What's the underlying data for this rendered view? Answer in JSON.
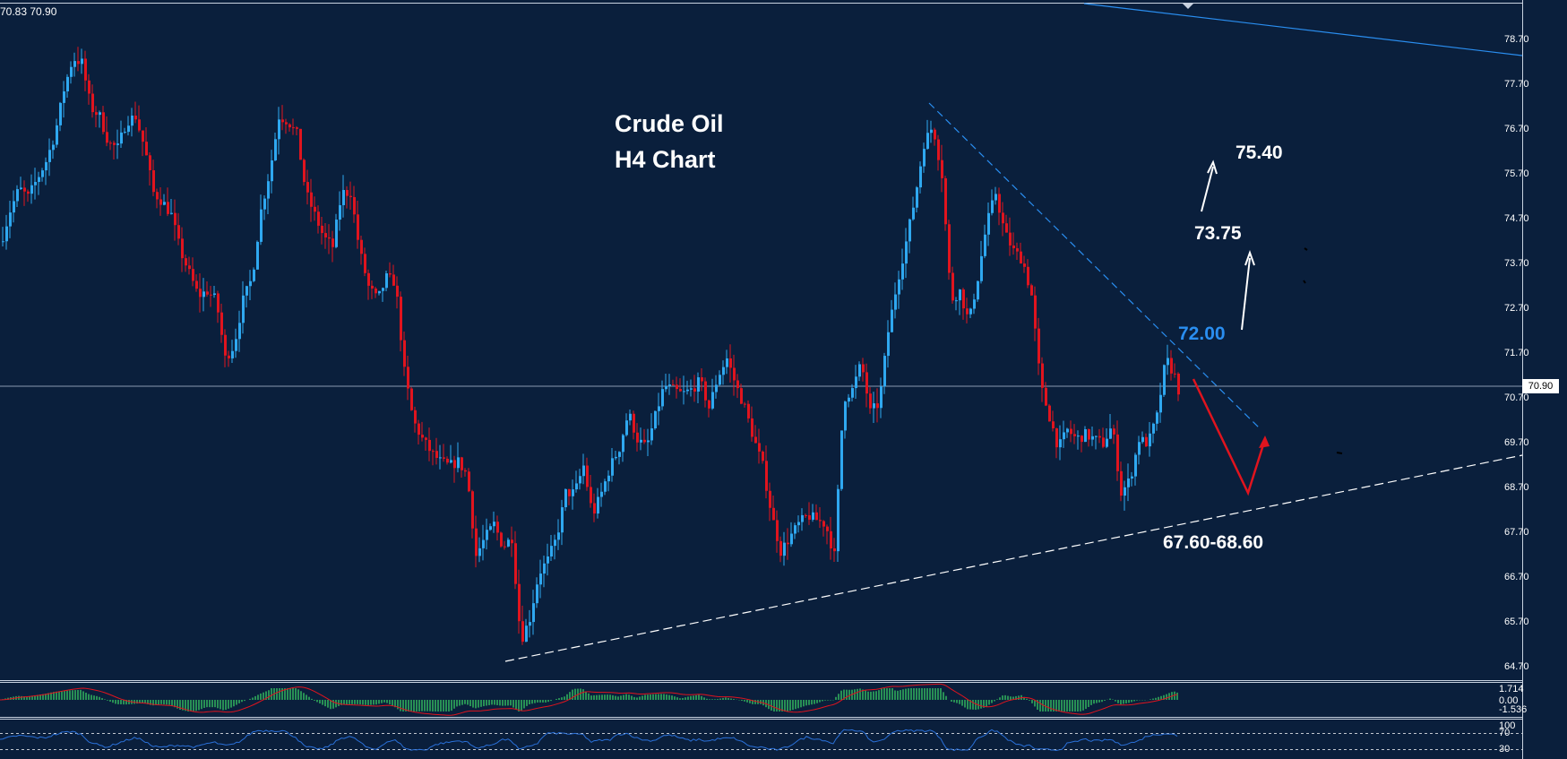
{
  "header": {
    "ohlc_text": "70.83 70.90"
  },
  "title": {
    "line1": "Crude Oil",
    "line2": "H4  Chart"
  },
  "annotations": {
    "target_high": "75.40",
    "target_mid": "73.75",
    "resistance": "72.00",
    "support_zone": "67.60-68.60"
  },
  "current_price": "70.90",
  "colors": {
    "background": "#0a1f3c",
    "bull": "#2fa8f0",
    "bear": "#e0141e",
    "resistance_label": "#2a8ef0",
    "arrow_bear": "#e0141e",
    "arrow_bull": "#ffffff",
    "macd_hist": "#35c060",
    "macd_signal": "#e0141e",
    "rsi_line": "#2a70d8"
  },
  "indicators": {
    "macd": {
      "labels": [
        "1.714",
        "0.00",
        "-1.536"
      ]
    },
    "rsi": {
      "labels": [
        "100",
        "70",
        "30"
      ]
    }
  },
  "chart_data": {
    "type": "candlestick",
    "title": "Crude Oil H4  Chart",
    "ylim": [
      64.2,
      79.3
    ],
    "y_ticks": [
      78.7,
      77.7,
      76.7,
      75.7,
      74.7,
      73.7,
      72.7,
      71.7,
      70.7,
      69.7,
      68.7,
      67.7,
      66.7,
      65.7,
      64.7
    ],
    "grid": false,
    "price_series": [
      {
        "x": 0,
        "y": 74.2
      },
      {
        "x": 10,
        "y": 74.9
      },
      {
        "x": 20,
        "y": 75.4
      },
      {
        "x": 30,
        "y": 75.2
      },
      {
        "x": 40,
        "y": 75.6
      },
      {
        "x": 50,
        "y": 76.0
      },
      {
        "x": 60,
        "y": 76.6
      },
      {
        "x": 70,
        "y": 77.6
      },
      {
        "x": 80,
        "y": 78.3
      },
      {
        "x": 90,
        "y": 78.2
      },
      {
        "x": 100,
        "y": 77.2
      },
      {
        "x": 110,
        "y": 77.0
      },
      {
        "x": 120,
        "y": 76.4
      },
      {
        "x": 130,
        "y": 76.3
      },
      {
        "x": 140,
        "y": 76.9
      },
      {
        "x": 150,
        "y": 77.0
      },
      {
        "x": 160,
        "y": 76.3
      },
      {
        "x": 170,
        "y": 75.3
      },
      {
        "x": 180,
        "y": 75.1
      },
      {
        "x": 190,
        "y": 74.8
      },
      {
        "x": 200,
        "y": 74.0
      },
      {
        "x": 210,
        "y": 73.5
      },
      {
        "x": 220,
        "y": 73.0
      },
      {
        "x": 230,
        "y": 73.1
      },
      {
        "x": 240,
        "y": 72.9
      },
      {
        "x": 250,
        "y": 71.6
      },
      {
        "x": 260,
        "y": 71.9
      },
      {
        "x": 270,
        "y": 72.9
      },
      {
        "x": 280,
        "y": 73.4
      },
      {
        "x": 290,
        "y": 74.9
      },
      {
        "x": 300,
        "y": 75.8
      },
      {
        "x": 310,
        "y": 77.0
      },
      {
        "x": 320,
        "y": 76.9
      },
      {
        "x": 330,
        "y": 76.6
      },
      {
        "x": 340,
        "y": 75.3
      },
      {
        "x": 350,
        "y": 74.8
      },
      {
        "x": 360,
        "y": 74.3
      },
      {
        "x": 370,
        "y": 74.1
      },
      {
        "x": 380,
        "y": 75.3
      },
      {
        "x": 390,
        "y": 75.3
      },
      {
        "x": 400,
        "y": 74.0
      },
      {
        "x": 410,
        "y": 73.2
      },
      {
        "x": 420,
        "y": 72.9
      },
      {
        "x": 430,
        "y": 73.4
      },
      {
        "x": 440,
        "y": 73.3
      },
      {
        "x": 450,
        "y": 71.3
      },
      {
        "x": 460,
        "y": 70.2
      },
      {
        "x": 470,
        "y": 69.8
      },
      {
        "x": 480,
        "y": 69.5
      },
      {
        "x": 490,
        "y": 69.3
      },
      {
        "x": 500,
        "y": 69.2
      },
      {
        "x": 510,
        "y": 69.3
      },
      {
        "x": 520,
        "y": 69.0
      },
      {
        "x": 530,
        "y": 67.2
      },
      {
        "x": 540,
        "y": 67.6
      },
      {
        "x": 550,
        "y": 67.9
      },
      {
        "x": 560,
        "y": 67.4
      },
      {
        "x": 570,
        "y": 67.6
      },
      {
        "x": 580,
        "y": 65.3
      },
      {
        "x": 590,
        "y": 65.8
      },
      {
        "x": 600,
        "y": 66.8
      },
      {
        "x": 610,
        "y": 67.1
      },
      {
        "x": 620,
        "y": 67.6
      },
      {
        "x": 630,
        "y": 68.6
      },
      {
        "x": 640,
        "y": 68.6
      },
      {
        "x": 650,
        "y": 69.2
      },
      {
        "x": 660,
        "y": 68.1
      },
      {
        "x": 670,
        "y": 68.6
      },
      {
        "x": 680,
        "y": 69.2
      },
      {
        "x": 690,
        "y": 69.6
      },
      {
        "x": 700,
        "y": 70.4
      },
      {
        "x": 710,
        "y": 69.8
      },
      {
        "x": 720,
        "y": 69.6
      },
      {
        "x": 730,
        "y": 70.3
      },
      {
        "x": 740,
        "y": 71.0
      },
      {
        "x": 750,
        "y": 70.9
      },
      {
        "x": 760,
        "y": 70.8
      },
      {
        "x": 770,
        "y": 70.9
      },
      {
        "x": 780,
        "y": 71.1
      },
      {
        "x": 790,
        "y": 70.5
      },
      {
        "x": 800,
        "y": 71.2
      },
      {
        "x": 810,
        "y": 71.6
      },
      {
        "x": 820,
        "y": 71.0
      },
      {
        "x": 830,
        "y": 70.5
      },
      {
        "x": 840,
        "y": 69.8
      },
      {
        "x": 850,
        "y": 69.2
      },
      {
        "x": 860,
        "y": 68.1
      },
      {
        "x": 870,
        "y": 67.3
      },
      {
        "x": 880,
        "y": 67.6
      },
      {
        "x": 890,
        "y": 67.9
      },
      {
        "x": 900,
        "y": 68.1
      },
      {
        "x": 910,
        "y": 68.0
      },
      {
        "x": 920,
        "y": 67.9
      },
      {
        "x": 930,
        "y": 67.2
      },
      {
        "x": 940,
        "y": 70.7
      },
      {
        "x": 950,
        "y": 70.9
      },
      {
        "x": 960,
        "y": 71.5
      },
      {
        "x": 970,
        "y": 70.4
      },
      {
        "x": 980,
        "y": 70.6
      },
      {
        "x": 990,
        "y": 72.2
      },
      {
        "x": 1000,
        "y": 73.3
      },
      {
        "x": 1010,
        "y": 74.2
      },
      {
        "x": 1020,
        "y": 75.2
      },
      {
        "x": 1030,
        "y": 76.4
      },
      {
        "x": 1040,
        "y": 76.8
      },
      {
        "x": 1050,
        "y": 75.7
      },
      {
        "x": 1060,
        "y": 72.9
      },
      {
        "x": 1070,
        "y": 73.1
      },
      {
        "x": 1080,
        "y": 72.4
      },
      {
        "x": 1090,
        "y": 73.4
      },
      {
        "x": 1100,
        "y": 74.6
      },
      {
        "x": 1110,
        "y": 75.3
      },
      {
        "x": 1120,
        "y": 74.4
      },
      {
        "x": 1130,
        "y": 74.0
      },
      {
        "x": 1140,
        "y": 73.8
      },
      {
        "x": 1150,
        "y": 73.0
      },
      {
        "x": 1160,
        "y": 71.0
      },
      {
        "x": 1170,
        "y": 70.3
      },
      {
        "x": 1180,
        "y": 69.6
      },
      {
        "x": 1190,
        "y": 70.0
      },
      {
        "x": 1200,
        "y": 69.8
      },
      {
        "x": 1210,
        "y": 69.9
      },
      {
        "x": 1220,
        "y": 69.8
      },
      {
        "x": 1230,
        "y": 69.7
      },
      {
        "x": 1240,
        "y": 70.1
      },
      {
        "x": 1250,
        "y": 68.6
      },
      {
        "x": 1260,
        "y": 68.9
      },
      {
        "x": 1270,
        "y": 69.8
      },
      {
        "x": 1280,
        "y": 69.7
      },
      {
        "x": 1290,
        "y": 70.3
      },
      {
        "x": 1300,
        "y": 71.6
      },
      {
        "x": 1310,
        "y": 71.2
      },
      {
        "x": 1314,
        "y": 70.9
      }
    ]
  }
}
